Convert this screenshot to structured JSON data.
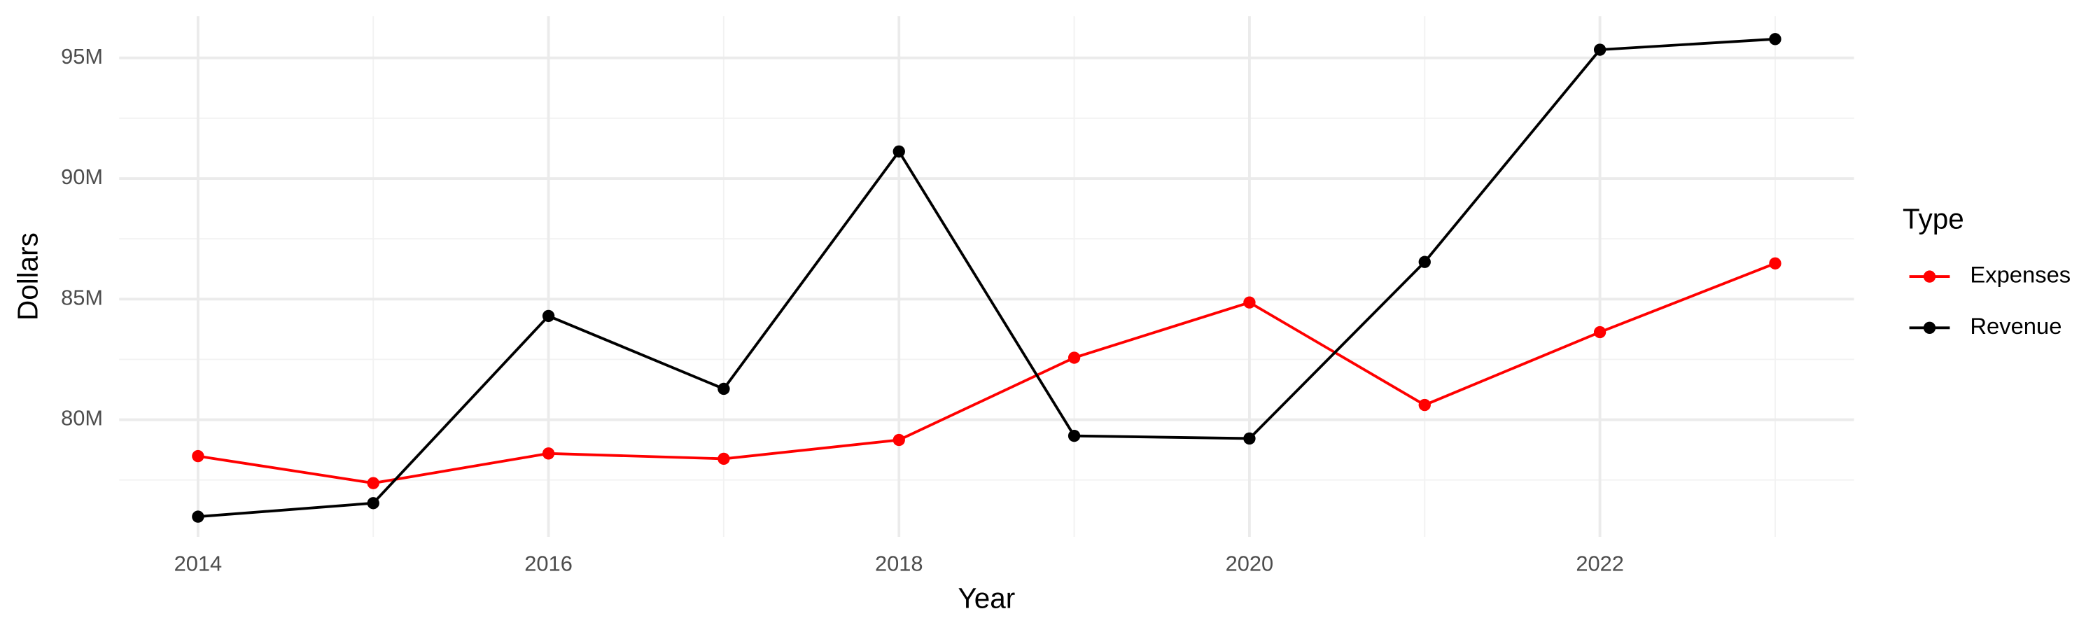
{
  "chart_data": {
    "type": "line",
    "x_label": "Year",
    "y_label": "Dollars",
    "x": [
      2014,
      2015,
      2016,
      2017,
      2018,
      2019,
      2020,
      2021,
      2022,
      2023
    ],
    "series": [
      {
        "name": "Expenses",
        "color": "#ff0000",
        "values": [
          78490000,
          77370000,
          78600000,
          78380000,
          79160000,
          82570000,
          84860000,
          80610000,
          83630000,
          86480000
        ]
      },
      {
        "name": "Revenue",
        "color": "#000000",
        "values": [
          75980000,
          76540000,
          84300000,
          81280000,
          91120000,
          79330000,
          79220000,
          86540000,
          95340000,
          95780000
        ]
      }
    ],
    "xlim": [
      2013.55,
      2023.45
    ],
    "xticks": [
      2014,
      2016,
      2018,
      2020,
      2022
    ],
    "ylim": [
      75140000,
      96730000
    ],
    "yticks": [
      {
        "value": 80000000,
        "label": "80M"
      },
      {
        "value": 85000000,
        "label": "85M"
      },
      {
        "value": 90000000,
        "label": "90M"
      },
      {
        "value": 95000000,
        "label": "95M"
      }
    ],
    "grid": true,
    "legend_title": "Type",
    "legend_position": "right"
  }
}
